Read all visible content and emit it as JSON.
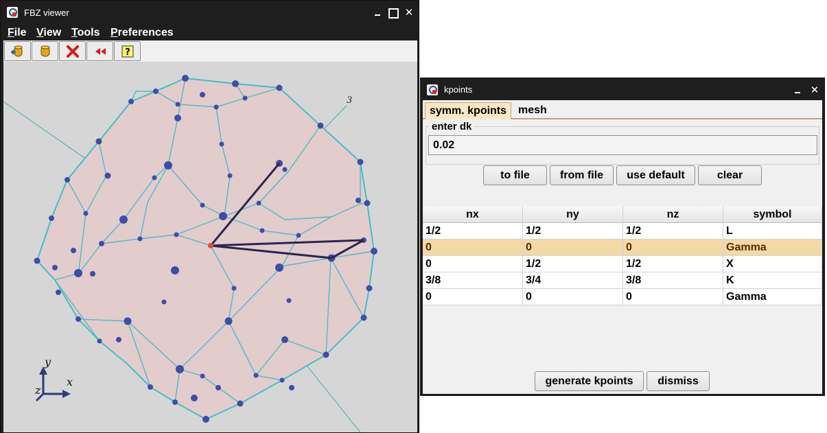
{
  "fbz_window": {
    "title": "FBZ viewer",
    "menu": [
      {
        "label": "File",
        "mnemonic": "F",
        "rest": "ile"
      },
      {
        "label": "View",
        "mnemonic": "V",
        "rest": "iew"
      },
      {
        "label": "Tools",
        "mnemonic": "T",
        "rest": "ools"
      },
      {
        "label": "Preferences",
        "mnemonic": "P",
        "rest": "references"
      }
    ],
    "toolbar_icons": [
      "load-icon",
      "save-icon",
      "delete-icon",
      "rewind-icon",
      "help-icon"
    ],
    "axis_labels": {
      "y": "y",
      "x": "x",
      "z": "z"
    },
    "path_label": "3"
  },
  "kpoints_window": {
    "title": "kpoints",
    "tabs": [
      "symm. kpoints",
      "mesh"
    ],
    "active_tab": "symm. kpoints",
    "dk_group_label": "enter dk",
    "dk_value": "0.02",
    "buttons": {
      "to_file": "to file",
      "from_file": "from file",
      "use_default": "use default",
      "clear": "clear"
    },
    "columns": [
      "nx",
      "ny",
      "nz",
      "symbol"
    ],
    "rows": [
      [
        "1/2",
        "1/2",
        "1/2",
        "L"
      ],
      [
        "0",
        "0",
        "0",
        "Gamma"
      ],
      [
        "0",
        "1/2",
        "1/2",
        "X"
      ],
      [
        "3/8",
        "3/4",
        "3/8",
        "K"
      ],
      [
        "0",
        "0",
        "0",
        "Gamma"
      ]
    ],
    "selected_row": 1,
    "bottom_buttons": {
      "generate": "generate kpoints",
      "dismiss": "dismiss"
    }
  },
  "colors": {
    "titlebar": "#1e1e1e",
    "zone_fill": "#e8c8c8",
    "zone_edge": "#3fc0c8",
    "vertex": "#3c4ea8",
    "path": "#2c2450",
    "gamma_point": "#e05030",
    "selection": "#f3d9a6"
  }
}
